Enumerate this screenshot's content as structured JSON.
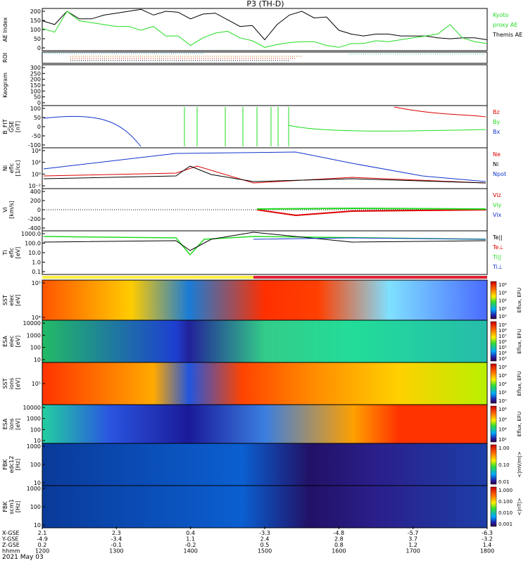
{
  "title": "P3 (TH-D)",
  "date_label": "2021 May 03",
  "colors": {
    "black": "#000000",
    "red": "#dd0000",
    "green": "#22dd22",
    "blue": "#1133cc",
    "kyoto": "#22dd22"
  },
  "panels": [
    {
      "key": "ae",
      "ylabel": [
        "AE Index"
      ],
      "ticks": [
        "200",
        "150",
        "100",
        "50",
        "0"
      ],
      "legend": [
        {
          "text": "Kyoto",
          "color": "#22dd22"
        },
        {
          "text": "proxy AE",
          "color": "#22dd22"
        },
        {
          "text": "Themis AE",
          "color": "#000000"
        }
      ]
    },
    {
      "key": "roi",
      "ylabel": [
        "ROI"
      ],
      "ticks": [],
      "legend": []
    },
    {
      "key": "kgram",
      "ylabel": [
        "Keogram"
      ],
      "ticks": [
        "300",
        "250",
        "200",
        "150",
        "100",
        "50",
        "0"
      ],
      "legend": []
    },
    {
      "key": "bfit",
      "ylabel": [
        "B_FIT",
        "GSE",
        "[nT]"
      ],
      "ticks": [
        "100",
        "50",
        "0",
        "-50",
        "-100"
      ],
      "legend": [
        {
          "text": "Bz",
          "color": "#dd0000"
        },
        {
          "text": "By",
          "color": "#22dd22"
        },
        {
          "text": "Bx",
          "color": "#1133cc"
        }
      ]
    },
    {
      "key": "ni",
      "ylabel": [
        "Ni",
        "eflc",
        "[1/cc]"
      ],
      "ticks": [
        "10⁴",
        "10²",
        "10⁰",
        "10⁻²"
      ],
      "legend": [
        {
          "text": "Ne",
          "color": "#dd0000"
        },
        {
          "text": "Ni",
          "color": "#000000"
        },
        {
          "text": "Npot",
          "color": "#1133cc"
        }
      ]
    },
    {
      "key": "vi",
      "ylabel": [
        "Vi",
        "[km/s]"
      ],
      "ticks": [
        "400",
        "200",
        "0",
        "-200",
        "-400"
      ],
      "legend": [
        {
          "text": "Viz",
          "color": "#dd0000"
        },
        {
          "text": "Viy",
          "color": "#22dd22"
        },
        {
          "text": "Vix",
          "color": "#1133cc"
        }
      ]
    },
    {
      "key": "ti",
      "ylabel": [
        "Ti",
        "eflc",
        "[eV]"
      ],
      "ticks": [
        "1000.0",
        "100.0",
        "10.0",
        "1.0",
        "0.1"
      ],
      "legend": [
        {
          "text": "Te||",
          "color": "#000000"
        },
        {
          "text": "Te⊥",
          "color": "#dd0000"
        },
        {
          "text": "Ti||",
          "color": "#22dd22"
        },
        {
          "text": "Ti⊥",
          "color": "#1133cc"
        }
      ]
    },
    {
      "key": "sst_e",
      "ylabel": [
        "SST",
        "elec",
        "[eV]"
      ],
      "ticks": [
        "10⁵",
        "10⁴"
      ],
      "legend": [],
      "cbar": {
        "title": "Eflux, EFU",
        "ticks": [
          "10⁸",
          "10⁶",
          "10⁴",
          "10²",
          "10⁰"
        ]
      }
    },
    {
      "key": "esa_e",
      "ylabel": [
        "ESA",
        "elec",
        "[eV]"
      ],
      "ticks": [
        "10000",
        "1000",
        "100",
        "10"
      ],
      "legend": [],
      "cbar": {
        "title": "Eflux, EFU",
        "ticks": [
          "10⁹",
          "10⁸",
          "10⁷",
          "10⁶",
          "10⁵",
          "10⁴",
          "10³"
        ]
      }
    },
    {
      "key": "sst_i",
      "ylabel": [
        "SST",
        "ions",
        "[eV]"
      ],
      "ticks": [
        "10⁵"
      ],
      "legend": [],
      "cbar": {
        "title": "Eflux, EFU",
        "ticks": [
          "10⁸",
          "10⁶",
          "10⁴",
          "10²",
          "10⁰"
        ]
      }
    },
    {
      "key": "esa_i",
      "ylabel": [
        "ESA",
        "ions",
        "[eV]"
      ],
      "ticks": [
        "10000",
        "1000",
        "100",
        "10"
      ],
      "legend": [],
      "cbar": {
        "title": "Eflux, EFU",
        "ticks": [
          "10⁸",
          "10⁶",
          "10⁴",
          "10²"
        ]
      }
    },
    {
      "key": "fbk_e",
      "ylabel": [
        "FBK",
        "edc12",
        "[Hz]"
      ],
      "ticks": [
        "1000",
        "100",
        "10"
      ],
      "legend": [],
      "cbar": {
        "title": "<|mV/m|>",
        "ticks": [
          "1.00",
          "0.10",
          "0.01"
        ]
      }
    },
    {
      "key": "fbk_b",
      "ylabel": [
        "FBK",
        "scm1",
        "[Hz]"
      ],
      "ticks": [
        "1000",
        "100",
        "10"
      ],
      "legend": [],
      "cbar": {
        "title": "<|nT|>",
        "ticks": [
          "1.000",
          "0.100",
          "0.010",
          "0.001"
        ]
      }
    }
  ],
  "xaxis": {
    "rows": [
      {
        "label": "X-GSE",
        "values": [
          "2.1",
          "2.3",
          "0.4",
          "-3.3",
          "-4.8",
          "-5.7",
          "-6.3"
        ]
      },
      {
        "label": "Y-GSE",
        "values": [
          "-4.9",
          "-3.4",
          "1.1",
          "2.4",
          "2.8",
          "3.7",
          "-3.2"
        ]
      },
      {
        "label": "Z-GSE",
        "values": [
          "0.2",
          "-0.1",
          "-0.2",
          "0.5",
          "0.8",
          "1.2",
          "1.4"
        ]
      },
      {
        "label": "hhmm",
        "values": [
          "1200",
          "1300",
          "1400",
          "1500",
          "1600",
          "1700",
          "1800"
        ]
      }
    ]
  },
  "chart_data": {
    "type": "line",
    "title": "P3 (TH-D)",
    "x_unit": "hhmm",
    "x_range": [
      "1200",
      "1800"
    ],
    "series": [
      {
        "panel": "AE Index",
        "name": "Themis AE",
        "color": "#000000",
        "x": [
          "1200",
          "1210",
          "1220",
          "1230",
          "1240",
          "1250",
          "1300",
          "1310",
          "1320",
          "1330",
          "1340",
          "1350",
          "1400",
          "1410",
          "1420",
          "1430",
          "1440",
          "1450",
          "1500",
          "1510",
          "1520",
          "1530",
          "1540",
          "1550",
          "1600",
          "1610",
          "1620",
          "1630",
          "1640",
          "1650",
          "1700",
          "1710",
          "1720",
          "1730",
          "1740",
          "1750",
          "1800"
        ],
        "y": [
          150,
          130,
          200,
          160,
          160,
          180,
          190,
          200,
          210,
          180,
          200,
          195,
          160,
          185,
          190,
          155,
          120,
          125,
          50,
          130,
          180,
          200,
          165,
          170,
          100,
          80,
          70,
          80,
          80,
          70,
          70,
          70,
          60,
          55,
          60,
          60,
          50
        ]
      },
      {
        "panel": "AE Index",
        "name": "Kyoto proxy AE",
        "color": "#22dd22",
        "x": [
          "1200",
          "1210",
          "1220",
          "1230",
          "1240",
          "1250",
          "1300",
          "1310",
          "1320",
          "1330",
          "1340",
          "1350",
          "1400",
          "1410",
          "1420",
          "1430",
          "1440",
          "1450",
          "1500",
          "1510",
          "1520",
          "1530",
          "1540",
          "1550",
          "1600",
          "1610",
          "1620",
          "1630",
          "1640",
          "1650",
          "1700",
          "1710",
          "1720",
          "1730",
          "1740",
          "1750",
          "1800"
        ],
        "y": [
          110,
          90,
          200,
          150,
          140,
          130,
          120,
          120,
          100,
          120,
          70,
          70,
          20,
          60,
          85,
          95,
          60,
          45,
          10,
          25,
          35,
          40,
          40,
          20,
          10,
          30,
          30,
          45,
          40,
          50,
          60,
          70,
          80,
          130,
          60,
          40,
          30
        ]
      }
    ],
    "xlabel": "hhmm",
    "date": "2021 May 03"
  }
}
